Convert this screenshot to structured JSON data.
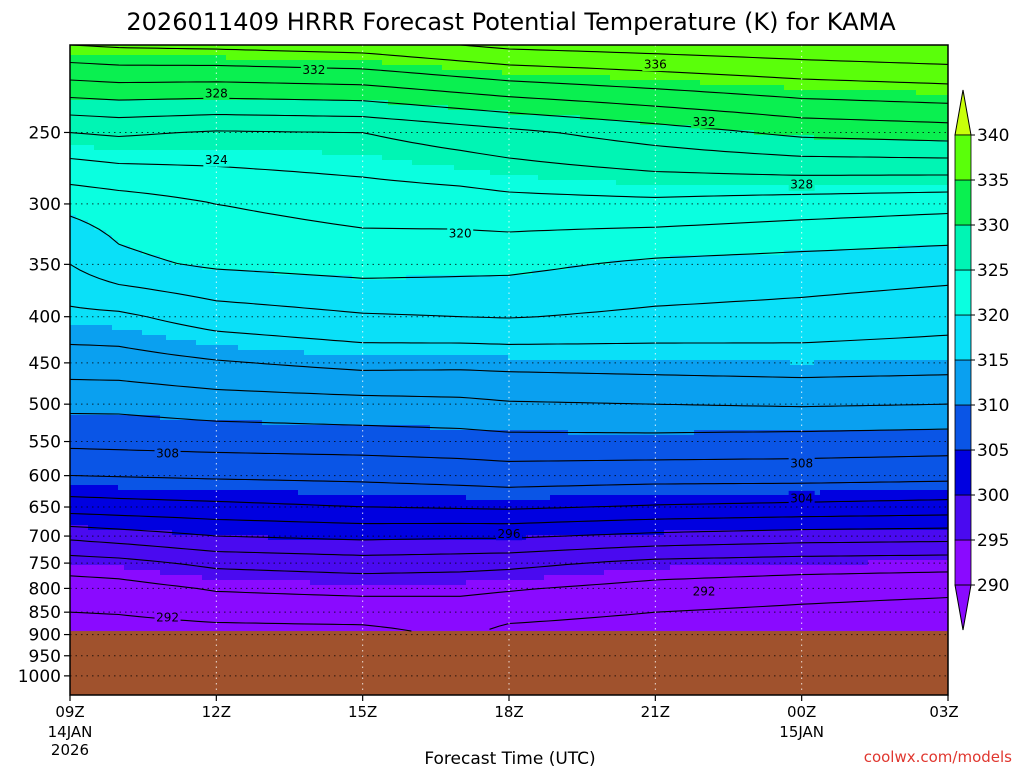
{
  "chart_data": {
    "type": "heatmap",
    "title": "2026011409 HRRR Forecast Potential Temperature (K) for KAMA",
    "xlabel": "Forecast Time (UTC)",
    "ylabel": "",
    "credit": "coolwx.com/models",
    "x_ticks": [
      {
        "hour": 0,
        "label": "09Z",
        "sub1": "14JAN",
        "sub2": "2026"
      },
      {
        "hour": 3,
        "label": "12Z",
        "sub1": "",
        "sub2": ""
      },
      {
        "hour": 6,
        "label": "15Z",
        "sub1": "",
        "sub2": ""
      },
      {
        "hour": 9,
        "label": "18Z",
        "sub1": "",
        "sub2": ""
      },
      {
        "hour": 12,
        "label": "21Z",
        "sub1": "",
        "sub2": ""
      },
      {
        "hour": 15,
        "label": "00Z",
        "sub1": "15JAN",
        "sub2": ""
      },
      {
        "hour": 18,
        "label": "03Z",
        "sub1": "",
        "sub2": ""
      }
    ],
    "xlim_hours": [
      0,
      18
    ],
    "y_ticks": [
      250,
      300,
      350,
      400,
      450,
      500,
      550,
      600,
      650,
      700,
      750,
      800,
      850,
      900,
      950,
      1000
    ],
    "ylim_hPa": [
      200,
      1050
    ],
    "y_scale": "log",
    "grid": "dotted",
    "surface_pressure_hPa": 892,
    "ground_color": "#a0522d",
    "colorbar": {
      "levels": [
        290,
        295,
        300,
        305,
        310,
        315,
        320,
        325,
        330,
        335,
        340
      ],
      "colors": [
        "#8a0aff",
        "#4a0af0",
        "#0000e0",
        "#0a55e6",
        "#0aa0f0",
        "#0ae0f8",
        "#0affe0",
        "#00f5b4",
        "#0af050",
        "#5aff0a",
        "#c8ff0a"
      ]
    },
    "contour_interval_K": 2,
    "theta_profiles": [
      {
        "hour": 0,
        "surface_theta": 291.2,
        "levels": [
          [
            892,
            291.2
          ],
          [
            850,
            292.0
          ],
          [
            800,
            293.0
          ],
          [
            750,
            295.0
          ],
          [
            700,
            298.5
          ],
          [
            650,
            303.0
          ],
          [
            600,
            306.0
          ],
          [
            550,
            308.5
          ],
          [
            500,
            310.5
          ],
          [
            450,
            313.0
          ],
          [
            400,
            315.5
          ],
          [
            350,
            318.0
          ],
          [
            300,
            320.5
          ],
          [
            250,
            326.0
          ],
          [
            200,
            336.0
          ]
        ]
      },
      {
        "hour": 1,
        "surface_theta": 291.3,
        "levels": [
          [
            892,
            291.3
          ],
          [
            850,
            292.1
          ],
          [
            800,
            293.2
          ],
          [
            750,
            295.3
          ],
          [
            700,
            299.0
          ],
          [
            650,
            303.2
          ],
          [
            600,
            306.1
          ],
          [
            550,
            308.6
          ],
          [
            500,
            310.5
          ],
          [
            450,
            313.1
          ],
          [
            400,
            315.6
          ],
          [
            350,
            319.5
          ],
          [
            300,
            321.0
          ],
          [
            250,
            326.3
          ],
          [
            200,
            336.3
          ]
        ]
      },
      {
        "hour": 3,
        "surface_theta": 291.5,
        "levels": [
          [
            892,
            291.5
          ],
          [
            850,
            292.6
          ],
          [
            800,
            294.2
          ],
          [
            750,
            296.5
          ],
          [
            700,
            300.0
          ],
          [
            650,
            303.5
          ],
          [
            600,
            306.3
          ],
          [
            550,
            308.8
          ],
          [
            500,
            311.0
          ],
          [
            450,
            313.8
          ],
          [
            400,
            317.0
          ],
          [
            350,
            320.3
          ],
          [
            300,
            322.0
          ],
          [
            250,
            325.8
          ],
          [
            200,
            336.5
          ]
        ]
      },
      {
        "hour": 6,
        "surface_theta": 291.6,
        "levels": [
          [
            892,
            291.6
          ],
          [
            850,
            292.8
          ],
          [
            800,
            294.6
          ],
          [
            750,
            297.0
          ],
          [
            700,
            300.5
          ],
          [
            650,
            304.0
          ],
          [
            600,
            306.5
          ],
          [
            550,
            309.0
          ],
          [
            500,
            311.3
          ],
          [
            450,
            314.6
          ],
          [
            400,
            317.8
          ],
          [
            350,
            320.8
          ],
          [
            300,
            322.8
          ],
          [
            250,
            326.0
          ],
          [
            200,
            337.0
          ]
        ]
      },
      {
        "hour": 8,
        "surface_theta": 292.4,
        "levels": [
          [
            892,
            292.4
          ],
          [
            850,
            293.0
          ],
          [
            800,
            294.5
          ],
          [
            750,
            296.8
          ],
          [
            700,
            300.3
          ],
          [
            650,
            304.2
          ],
          [
            600,
            306.8
          ],
          [
            550,
            309.2
          ],
          [
            500,
            311.5
          ],
          [
            450,
            314.5
          ],
          [
            400,
            318.0
          ],
          [
            350,
            320.6
          ],
          [
            300,
            323.0
          ],
          [
            250,
            327.0
          ],
          [
            200,
            338.0
          ]
        ]
      },
      {
        "hour": 9,
        "surface_theta": 291.6,
        "levels": [
          [
            892,
            291.6
          ],
          [
            850,
            292.6
          ],
          [
            800,
            294.2
          ],
          [
            750,
            296.6
          ],
          [
            700,
            300.3
          ],
          [
            650,
            304.3
          ],
          [
            600,
            307.0
          ],
          [
            550,
            309.4
          ],
          [
            500,
            311.8
          ],
          [
            450,
            314.6
          ],
          [
            400,
            318.1
          ],
          [
            350,
            320.5
          ],
          [
            300,
            323.3
          ],
          [
            250,
            327.5
          ],
          [
            200,
            338.5
          ]
        ]
      },
      {
        "hour": 12,
        "surface_theta": 291.2,
        "levels": [
          [
            892,
            291.2
          ],
          [
            850,
            292.0
          ],
          [
            800,
            293.3
          ],
          [
            750,
            295.4
          ],
          [
            700,
            299.5
          ],
          [
            650,
            303.8
          ],
          [
            600,
            306.8
          ],
          [
            550,
            309.4
          ],
          [
            500,
            312.0
          ],
          [
            450,
            314.8
          ],
          [
            400,
            317.6
          ],
          [
            350,
            319.6
          ],
          [
            300,
            323.5
          ],
          [
            250,
            329.0
          ],
          [
            200,
            339.0
          ]
        ]
      },
      {
        "hour": 15,
        "surface_theta": 290.8,
        "levels": [
          [
            892,
            290.8
          ],
          [
            850,
            291.6
          ],
          [
            800,
            292.8
          ],
          [
            750,
            295.0
          ],
          [
            700,
            299.0
          ],
          [
            650,
            303.5
          ],
          [
            600,
            306.8
          ],
          [
            550,
            309.2
          ],
          [
            500,
            312.2
          ],
          [
            450,
            315.0
          ],
          [
            400,
            317.3
          ],
          [
            350,
            319.2
          ],
          [
            300,
            323.0
          ],
          [
            250,
            330.5
          ],
          [
            200,
            339.5
          ]
        ]
      },
      {
        "hour": 18,
        "surface_theta": 290.6,
        "levels": [
          [
            892,
            290.6
          ],
          [
            850,
            291.2
          ],
          [
            800,
            292.5
          ],
          [
            750,
            294.8
          ],
          [
            700,
            298.8
          ],
          [
            650,
            303.2
          ],
          [
            600,
            306.6
          ],
          [
            550,
            309.0
          ],
          [
            500,
            312.0
          ],
          [
            450,
            314.8
          ],
          [
            400,
            316.8
          ],
          [
            350,
            318.8
          ],
          [
            300,
            322.6
          ],
          [
            250,
            331.0
          ],
          [
            200,
            340.0
          ]
        ]
      }
    ],
    "contour_labels": [
      {
        "value": "336",
        "hour": 12.0,
        "hPa": 210
      },
      {
        "value": "332",
        "hour": 5.0,
        "hPa": 213
      },
      {
        "value": "332",
        "hour": 13.0,
        "hPa": 243
      },
      {
        "value": "328",
        "hour": 3.0,
        "hPa": 226
      },
      {
        "value": "328",
        "hour": 15.0,
        "hPa": 285
      },
      {
        "value": "324",
        "hour": 3.0,
        "hPa": 268
      },
      {
        "value": "320",
        "hour": 8.0,
        "hPa": 323
      },
      {
        "value": "308",
        "hour": 2.0,
        "hPa": 566
      },
      {
        "value": "308",
        "hour": 15.0,
        "hPa": 581
      },
      {
        "value": "304",
        "hour": 15.0,
        "hPa": 635
      },
      {
        "value": "296",
        "hour": 9.0,
        "hPa": 695
      },
      {
        "value": "292",
        "hour": 13.0,
        "hPa": 805
      },
      {
        "value": "292",
        "hour": 2.0,
        "hPa": 860
      }
    ]
  }
}
